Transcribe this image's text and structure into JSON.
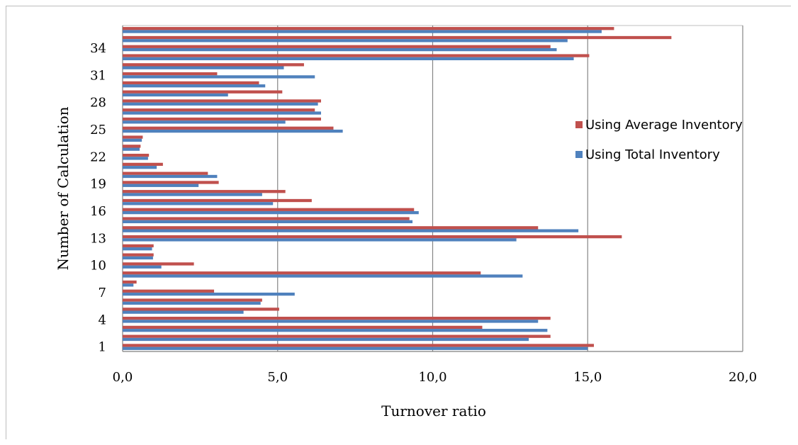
{
  "chart_data": {
    "type": "bar",
    "orientation": "horizontal",
    "xlabel": "Turnover ratio",
    "ylabel": "Number of Calculation",
    "xlim": [
      0,
      20
    ],
    "x_ticks": [
      "0,0",
      "5,0",
      "10,0",
      "15,0",
      "20,0"
    ],
    "categories": [
      "1",
      "2",
      "3",
      "4",
      "5",
      "6",
      "7",
      "8",
      "9",
      "10",
      "11",
      "12",
      "13",
      "14",
      "15",
      "16",
      "17",
      "18",
      "19",
      "20",
      "21",
      "22",
      "23",
      "24",
      "25",
      "26",
      "27",
      "28",
      "29",
      "30",
      "31",
      "32",
      "33",
      "34",
      "35",
      "36"
    ],
    "y_tick_labels": [
      "1",
      "4",
      "7",
      "10",
      "13",
      "16",
      "19",
      "22",
      "25",
      "28",
      "31",
      "34"
    ],
    "grid": true,
    "legend_position": "right",
    "series": [
      {
        "name": "Using Average Inventory",
        "color": "#c0504d",
        "values": [
          15.2,
          13.8,
          11.6,
          13.8,
          5.05,
          4.5,
          2.95,
          0.45,
          11.55,
          2.3,
          1.0,
          1.0,
          16.1,
          13.4,
          9.25,
          9.4,
          6.1,
          5.25,
          3.1,
          2.75,
          1.3,
          0.85,
          0.58,
          0.65,
          6.8,
          6.4,
          6.2,
          6.4,
          5.15,
          4.4,
          3.05,
          5.85,
          15.05,
          13.8,
          17.7,
          15.85
        ]
      },
      {
        "name": "Using Total Inventory",
        "color": "#4f81bd",
        "values": [
          15.0,
          13.1,
          13.7,
          13.4,
          3.9,
          4.45,
          5.55,
          0.35,
          12.9,
          1.25,
          0.98,
          0.95,
          12.7,
          14.7,
          9.35,
          9.55,
          4.85,
          4.5,
          2.45,
          3.05,
          1.1,
          0.82,
          0.55,
          0.62,
          7.1,
          5.25,
          6.4,
          6.3,
          3.4,
          4.6,
          6.2,
          5.2,
          14.55,
          14.0,
          14.35,
          15.45
        ]
      }
    ]
  }
}
